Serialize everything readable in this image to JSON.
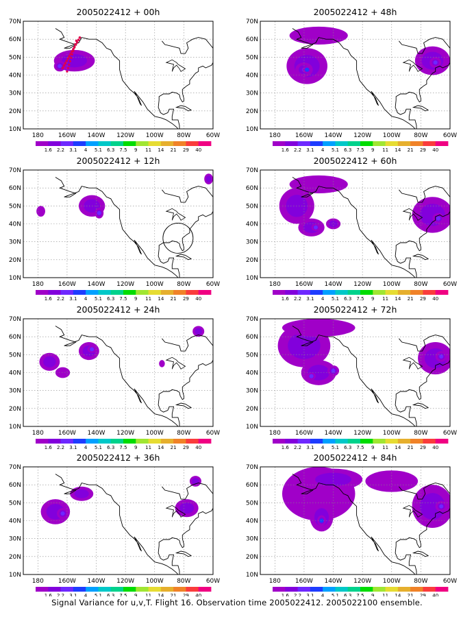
{
  "panels": [
    {
      "title": "2005022412 + 00h",
      "blobs": [
        [
          -155,
          48,
          14,
          6,
          2
        ],
        [
          -165,
          45,
          4,
          3,
          3
        ]
      ],
      "track": true
    },
    {
      "title": "2005022412 + 12h",
      "blobs": [
        [
          -143,
          50,
          9,
          6,
          2
        ],
        [
          -138,
          46,
          3,
          3,
          3
        ],
        [
          -178,
          47,
          3,
          3,
          1
        ],
        [
          -63,
          65,
          3,
          3,
          2
        ]
      ],
      "circle": true
    },
    {
      "title": "2005022412 + 24h",
      "blobs": [
        [
          -172,
          46,
          7,
          5,
          2
        ],
        [
          -163,
          40,
          5,
          3,
          1
        ],
        [
          -145,
          52,
          7,
          5,
          2
        ],
        [
          -143,
          53,
          3,
          2,
          3
        ],
        [
          -95,
          45,
          2,
          2,
          1
        ],
        [
          -70,
          63,
          4,
          3,
          2
        ]
      ]
    },
    {
      "title": "2005022412 + 36h",
      "blobs": [
        [
          -168,
          45,
          10,
          7,
          2
        ],
        [
          -163,
          44,
          4,
          3,
          3
        ],
        [
          -150,
          55,
          8,
          4,
          2
        ],
        [
          -78,
          47,
          8,
          5,
          2
        ],
        [
          -72,
          62,
          4,
          3,
          2
        ]
      ]
    },
    {
      "title": "2005022412 + 48h",
      "blobs": [
        [
          -158,
          45,
          14,
          10,
          2
        ],
        [
          -160,
          43,
          6,
          4,
          3
        ],
        [
          -158,
          43,
          3,
          2,
          4
        ],
        [
          -150,
          62,
          20,
          5,
          1
        ],
        [
          -72,
          48,
          12,
          8,
          2
        ],
        [
          -70,
          47,
          4,
          3,
          3
        ]
      ]
    },
    {
      "title": "2005022412 + 60h",
      "blobs": [
        [
          -165,
          50,
          12,
          10,
          2
        ],
        [
          -155,
          38,
          9,
          5,
          2
        ],
        [
          -152,
          38,
          3,
          2,
          3
        ],
        [
          -140,
          40,
          5,
          3,
          2
        ],
        [
          -150,
          62,
          20,
          5,
          1
        ],
        [
          -72,
          45,
          14,
          10,
          2
        ],
        [
          -68,
          43,
          4,
          3,
          3
        ]
      ]
    },
    {
      "title": "2005022412 + 72h",
      "blobs": [
        [
          -160,
          55,
          18,
          12,
          2
        ],
        [
          -150,
          40,
          12,
          7,
          2
        ],
        [
          -155,
          38,
          3,
          2,
          3
        ],
        [
          -140,
          41,
          4,
          3,
          3
        ],
        [
          -150,
          65,
          25,
          5,
          1
        ],
        [
          -70,
          48,
          12,
          9,
          2
        ],
        [
          -66,
          49,
          4,
          3,
          3
        ]
      ]
    },
    {
      "title": "2005022412 + 84h",
      "blobs": [
        [
          -150,
          55,
          25,
          15,
          1
        ],
        [
          -148,
          42,
          8,
          8,
          2
        ],
        [
          -148,
          40,
          3,
          3,
          4
        ],
        [
          -140,
          63,
          20,
          6,
          2
        ],
        [
          -72,
          48,
          14,
          12,
          2
        ],
        [
          -66,
          48,
          4,
          3,
          3
        ],
        [
          -100,
          62,
          18,
          6,
          1
        ]
      ]
    }
  ],
  "lon_labels": [
    "180",
    "160W",
    "140W",
    "120W",
    "100W",
    "80W",
    "60W"
  ],
  "lat_labels": [
    "10N",
    "20N",
    "30N",
    "40N",
    "50N",
    "60N",
    "70N"
  ],
  "colorbar": {
    "labels": [
      "1.6",
      "2.2",
      "3.1",
      "4",
      "5.1",
      "6.3",
      "7.5",
      "9",
      "11",
      "14",
      "21",
      "29",
      "40"
    ],
    "colors": [
      "#a000c8",
      "#8200dc",
      "#6e28ff",
      "#1e3cff",
      "#00a0ff",
      "#00c8c8",
      "#00d28c",
      "#00dc00",
      "#a0e632",
      "#e6dc32",
      "#e6af2d",
      "#f08228",
      "#fa3c3c",
      "#f00082"
    ]
  },
  "footer": "Signal Variance for u,v,T. Flight 16. Observation time 2005022412. 2005022100 ensemble."
}
